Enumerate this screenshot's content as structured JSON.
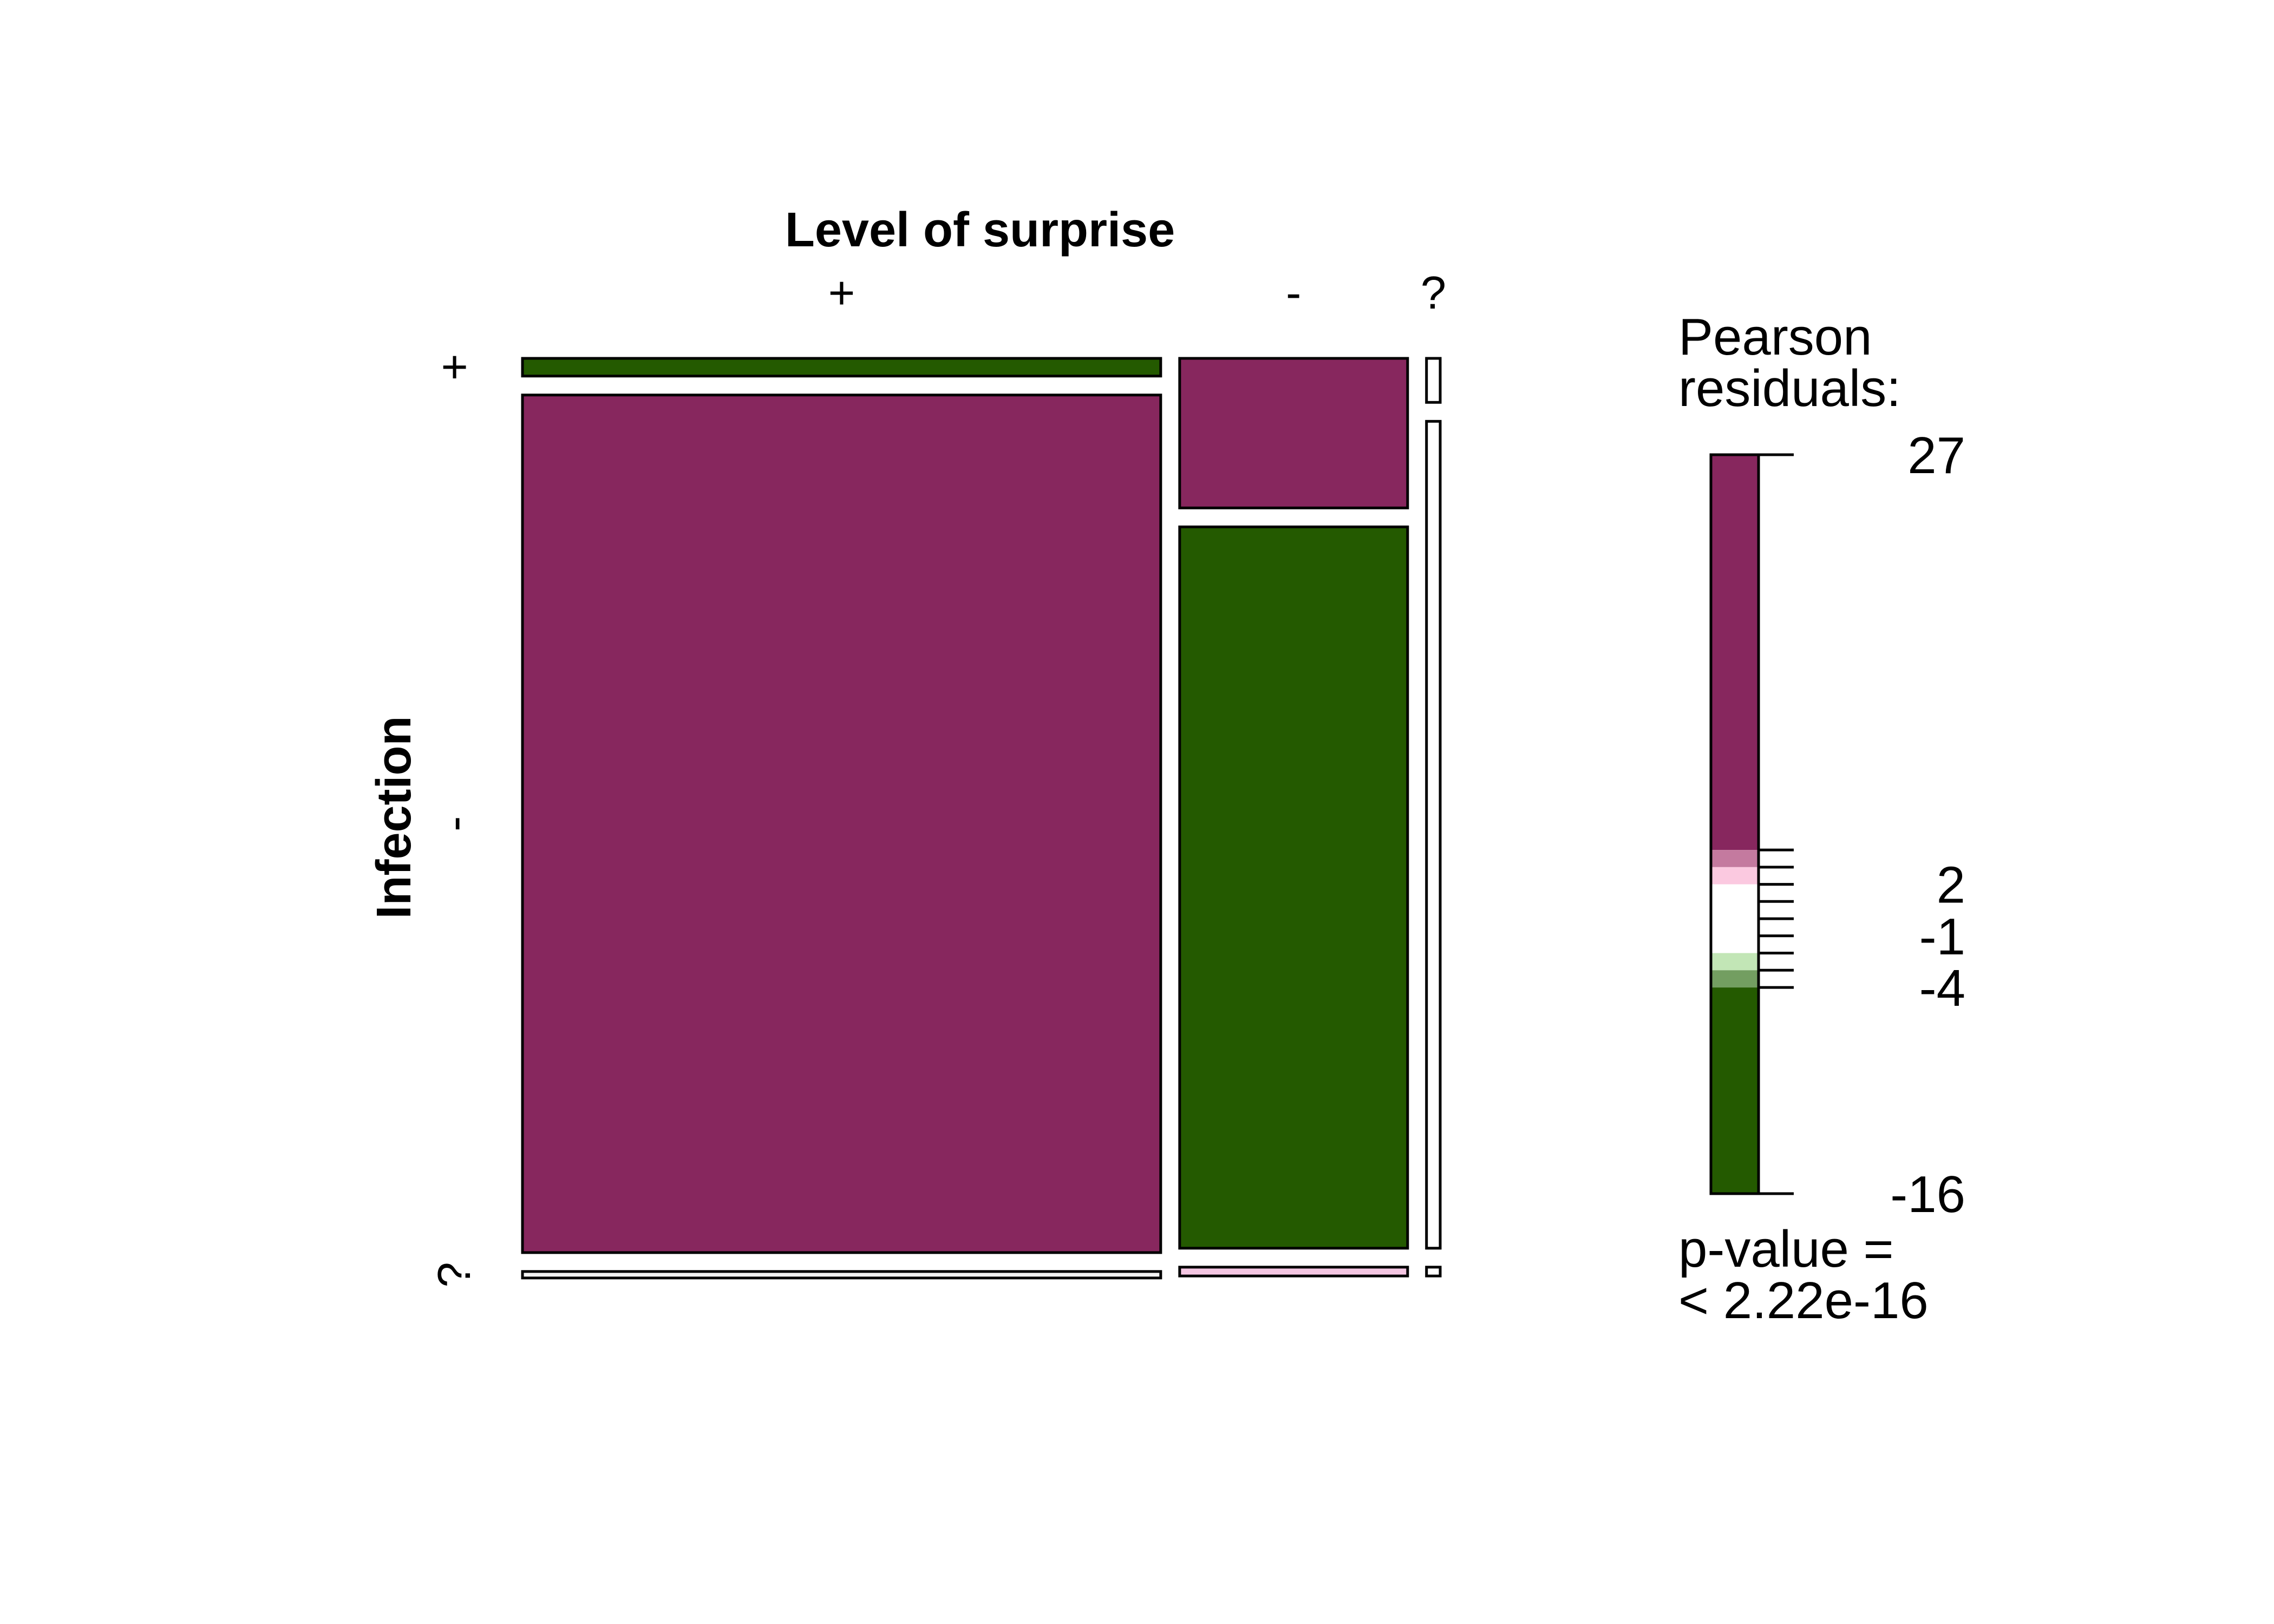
{
  "chart_data": {
    "type": "mosaic",
    "x_variable": "Level of surprise",
    "y_variable": "Infection",
    "x_levels": [
      "+",
      "-",
      "?"
    ],
    "y_levels": [
      "+",
      "-",
      "?"
    ],
    "column_proportions": [
      0.7,
      0.25,
      0.015
    ],
    "cells": [
      {
        "x": "+",
        "y": "+",
        "proportion_in_column": 0.02,
        "residual_color": "#245a00"
      },
      {
        "x": "+",
        "y": "-",
        "proportion_in_column": 0.97,
        "residual_color": "#87275e"
      },
      {
        "x": "+",
        "y": "?",
        "proportion_in_column": 0.005,
        "residual_color": "#f2f2f2"
      },
      {
        "x": "-",
        "y": "+",
        "proportion_in_column": 0.17,
        "residual_color": "#87275e"
      },
      {
        "x": "-",
        "y": "-",
        "proportion_in_column": 0.82,
        "residual_color": "#245a00"
      },
      {
        "x": "-",
        "y": "?",
        "proportion_in_column": 0.01,
        "residual_color": "#f4c6e2"
      },
      {
        "x": "?",
        "y": "+",
        "proportion_in_column": 0.05,
        "residual_color": "#ffffff"
      },
      {
        "x": "?",
        "y": "-",
        "proportion_in_column": 0.94,
        "residual_color": "#ffffff"
      },
      {
        "x": "?",
        "y": "?",
        "proportion_in_column": 0.01,
        "residual_color": "#ffffff"
      }
    ],
    "legend": {
      "title_line1": "Pearson",
      "title_line2": "residuals:",
      "max": 27,
      "min": -16,
      "shown_labels": [
        "27",
        "2",
        "-1",
        "-4",
        "-16"
      ],
      "shown_values": [
        27,
        2,
        -1,
        -4,
        -16
      ],
      "color_bands": [
        {
          "from": 4,
          "to": 27,
          "color": "#87275e"
        },
        {
          "from": 3,
          "to": 4,
          "color": "#c47a9f"
        },
        {
          "from": 2,
          "to": 3,
          "color": "#fbc9e0"
        },
        {
          "from": -2,
          "to": 2,
          "color": "#ffffff"
        },
        {
          "from": -3,
          "to": -2,
          "color": "#c2e6b6"
        },
        {
          "from": -4,
          "to": -3,
          "color": "#739e61"
        },
        {
          "from": -16,
          "to": -4,
          "color": "#245a00"
        }
      ],
      "tick_values": [
        4,
        3,
        2,
        1,
        0,
        -1,
        -2,
        -3,
        -4
      ],
      "pvalue_line1": "p-value =",
      "pvalue_line2": "< 2.22e-16"
    }
  }
}
